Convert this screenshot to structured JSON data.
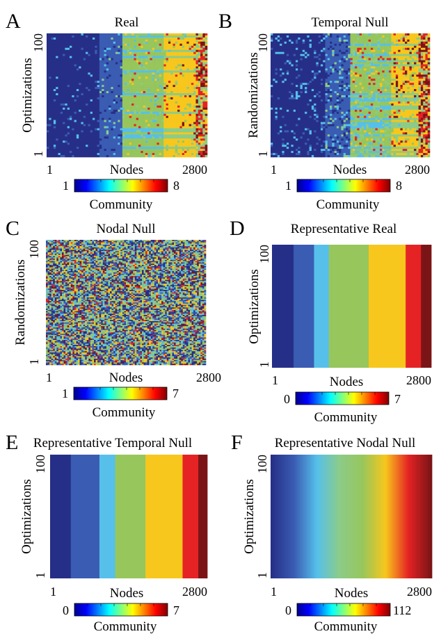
{
  "figure": {
    "colormap": "jet",
    "x_axis_label": "Nodes",
    "colorbar_label": "Community"
  },
  "chart_data": [
    {
      "type": "heatmap",
      "panel_letter": "A",
      "title": "Real",
      "xlabel": "Nodes",
      "ylabel": "Optimizations",
      "x_ticks": [
        "1",
        "2800"
      ],
      "y_ticks": [
        "1",
        "100"
      ],
      "xlim": [
        1,
        2800
      ],
      "ylim": [
        1,
        100
      ],
      "colorbar": {
        "label": "Community",
        "min": 1,
        "max": 8,
        "tick_labels": [
          "1",
          "8"
        ]
      },
      "pattern": "structured",
      "block_boundaries": [
        1,
        900,
        1290,
        2030,
        2580,
        2800
      ]
    },
    {
      "type": "heatmap",
      "panel_letter": "B",
      "title": "Temporal Null",
      "xlabel": "Nodes",
      "ylabel": "Randomizations",
      "x_ticks": [
        "1",
        "2800"
      ],
      "y_ticks": [
        "1",
        "100"
      ],
      "xlim": [
        1,
        2800
      ],
      "ylim": [
        1,
        100
      ],
      "colorbar": {
        "label": "Community",
        "min": 1,
        "max": 8,
        "tick_labels": [
          "1",
          "8"
        ]
      },
      "pattern": "structured-noisy",
      "block_boundaries": [
        1,
        930,
        1380,
        2100,
        2590,
        2800
      ]
    },
    {
      "type": "heatmap",
      "panel_letter": "C",
      "title": "Nodal Null",
      "xlabel": "Nodes",
      "ylabel": "Randomizations",
      "x_ticks": [
        "1",
        "2800"
      ],
      "y_ticks": [
        "1",
        "100"
      ],
      "xlim": [
        1,
        2800
      ],
      "ylim": [
        1,
        100
      ],
      "colorbar": {
        "label": "Community",
        "min": 1,
        "max": 7,
        "tick_labels": [
          "1",
          "7"
        ]
      },
      "pattern": "random"
    },
    {
      "type": "heatmap",
      "panel_letter": "D",
      "title": "Representative Real",
      "xlabel": "Nodes",
      "ylabel": "Optimizations",
      "x_ticks": [
        "1",
        "2800"
      ],
      "y_ticks": [
        "1",
        "100"
      ],
      "xlim": [
        1,
        2800
      ],
      "ylim": [
        1,
        100
      ],
      "colorbar": {
        "label": "Community",
        "min": 0,
        "max": 7,
        "tick_labels": [
          "0",
          "7"
        ]
      },
      "pattern": "blocks",
      "blocks": [
        {
          "start": 1,
          "end": 380,
          "community": 0
        },
        {
          "start": 380,
          "end": 740,
          "community": 1
        },
        {
          "start": 740,
          "end": 1000,
          "community": 2
        },
        {
          "start": 1000,
          "end": 1700,
          "community": 4
        },
        {
          "start": 1700,
          "end": 2350,
          "community": 5
        },
        {
          "start": 2350,
          "end": 2620,
          "community": 6
        },
        {
          "start": 2620,
          "end": 2800,
          "community": 7
        }
      ]
    },
    {
      "type": "heatmap",
      "panel_letter": "E",
      "title": "Representative Temporal Null",
      "xlabel": "Nodes",
      "ylabel": "Optimizations",
      "x_ticks": [
        "1",
        "2800"
      ],
      "y_ticks": [
        "1",
        "100"
      ],
      "xlim": [
        1,
        2800
      ],
      "ylim": [
        1,
        100
      ],
      "colorbar": {
        "label": "Community",
        "min": 0,
        "max": 7,
        "tick_labels": [
          "0",
          "7"
        ]
      },
      "pattern": "blocks",
      "blocks": [
        {
          "start": 1,
          "end": 370,
          "community": 0
        },
        {
          "start": 370,
          "end": 880,
          "community": 1
        },
        {
          "start": 880,
          "end": 1160,
          "community": 2
        },
        {
          "start": 1160,
          "end": 1700,
          "community": 4
        },
        {
          "start": 1700,
          "end": 2360,
          "community": 5
        },
        {
          "start": 2360,
          "end": 2640,
          "community": 6
        },
        {
          "start": 2640,
          "end": 2800,
          "community": 7
        }
      ]
    },
    {
      "type": "heatmap",
      "panel_letter": "F",
      "title": "Representative Nodal Null",
      "xlabel": "Nodes",
      "ylabel": "Optimizations",
      "x_ticks": [
        "1",
        "2800"
      ],
      "y_ticks": [
        "1",
        "100"
      ],
      "xlim": [
        1,
        2800
      ],
      "ylim": [
        1,
        100
      ],
      "colorbar": {
        "label": "Community",
        "min": 0,
        "max": 112,
        "tick_labels": [
          "0",
          "112"
        ]
      },
      "pattern": "gradient"
    }
  ]
}
